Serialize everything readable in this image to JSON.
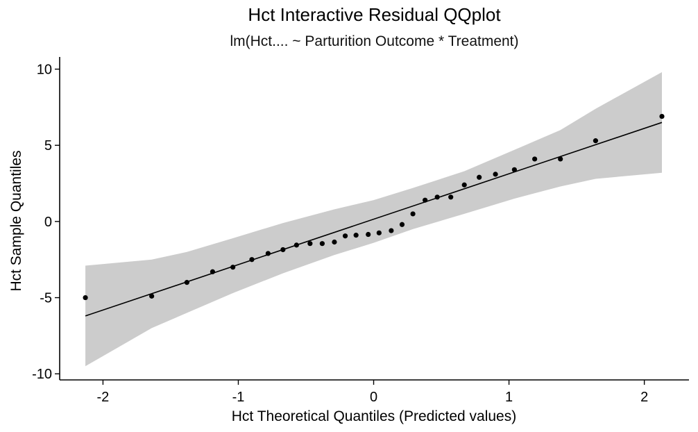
{
  "chart_data": {
    "type": "scatter",
    "title": "Hct Interactive Residual QQplot",
    "subtitle": "lm(Hct.... ~ Parturition Outcome * Treatment)",
    "xlabel": "Hct Theoretical Quantiles (Predicted values)",
    "ylabel": "Hct Sample Quantiles",
    "xlim": [
      -2.32,
      2.33
    ],
    "ylim": [
      -10.4,
      10.8
    ],
    "xticks": [
      -2,
      -1,
      0,
      1,
      2
    ],
    "yticks": [
      -10,
      -5,
      0,
      5,
      10
    ],
    "xtick_labels": [
      "-2",
      "-1",
      "0",
      "1",
      "2"
    ],
    "ytick_labels": [
      "-10",
      "-5",
      "0",
      "5",
      "10"
    ],
    "grid": false,
    "points": {
      "x": [
        -2.13,
        -1.64,
        -1.38,
        -1.19,
        -1.04,
        -0.9,
        -0.78,
        -0.67,
        -0.57,
        -0.47,
        -0.38,
        -0.29,
        -0.21,
        -0.13,
        -0.04,
        0.04,
        0.13,
        0.21,
        0.29,
        0.38,
        0.47,
        0.57,
        0.67,
        0.78,
        0.9,
        1.04,
        1.19,
        1.38,
        1.64,
        2.13
      ],
      "y": [
        -5.0,
        -4.9,
        -4.0,
        -3.3,
        -3.0,
        -2.5,
        -2.1,
        -1.85,
        -1.55,
        -1.45,
        -1.45,
        -1.35,
        -0.95,
        -0.9,
        -0.85,
        -0.75,
        -0.6,
        -0.2,
        0.5,
        1.4,
        1.6,
        1.6,
        2.4,
        2.9,
        3.1,
        3.4,
        4.1,
        4.1,
        5.3,
        6.9
      ]
    },
    "reference_line": {
      "x": [
        -2.13,
        2.13
      ],
      "y": [
        -6.2,
        6.5
      ]
    },
    "confidence_band": {
      "x": [
        -2.13,
        -1.64,
        -1.38,
        -1.04,
        -0.67,
        -0.29,
        0.0,
        0.29,
        0.67,
        1.04,
        1.38,
        1.64,
        2.13
      ],
      "lower": [
        -9.5,
        -7.0,
        -6.0,
        -4.7,
        -3.4,
        -2.2,
        -1.4,
        -0.5,
        0.5,
        1.5,
        2.3,
        2.8,
        3.2
      ],
      "upper": [
        -2.9,
        -2.5,
        -2.0,
        -1.1,
        -0.1,
        0.8,
        1.4,
        2.2,
        3.3,
        4.7,
        6.0,
        7.4,
        9.8
      ]
    },
    "colors": {
      "points": "#000000",
      "line": "#000000",
      "band": "#cccccc"
    }
  }
}
